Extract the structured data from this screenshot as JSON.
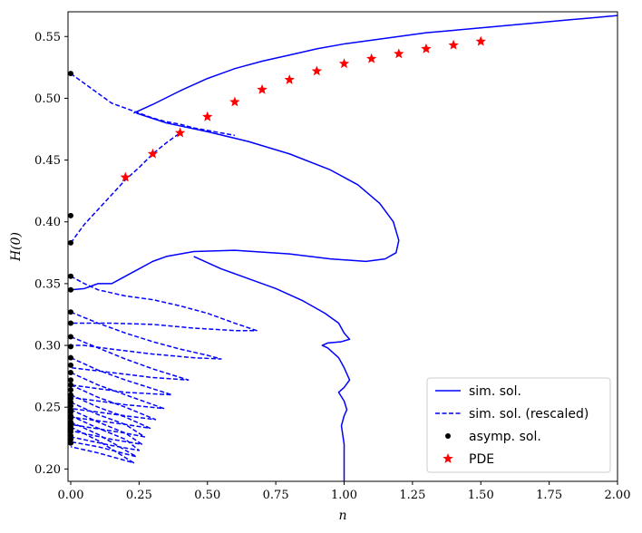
{
  "chart_data": {
    "type": "line",
    "xlabel": "n",
    "ylabel": "H(0)",
    "xlim": [
      -0.01,
      2.0
    ],
    "ylim": [
      0.19,
      0.57
    ],
    "x_ticks": [
      "0.00",
      "0.25",
      "0.50",
      "0.75",
      "1.00",
      "1.25",
      "1.50",
      "1.75",
      "2.00"
    ],
    "x_tick_values": [
      0.0,
      0.25,
      0.5,
      0.75,
      1.0,
      1.25,
      1.5,
      1.75,
      2.0
    ],
    "y_ticks": [
      "0.20",
      "0.25",
      "0.30",
      "0.35",
      "0.40",
      "0.45",
      "0.50",
      "0.55"
    ],
    "y_tick_values": [
      0.2,
      0.25,
      0.3,
      0.35,
      0.4,
      0.45,
      0.5,
      0.55
    ],
    "grid": false,
    "legend_position": "lower-right",
    "colors": {
      "solid": "#0000ff",
      "dashed": "#0000ff",
      "asymp": "#000000",
      "pde": "#ff0000"
    },
    "legend": [
      {
        "label": "sim. sol.",
        "style": "solid"
      },
      {
        "label": "sim. sol. (rescaled)",
        "style": "dashed"
      },
      {
        "label": "asymp. sol.",
        "style": "dot"
      },
      {
        "label": "PDE",
        "style": "star"
      }
    ],
    "series": [
      {
        "name": "sim. sol.",
        "style": "solid",
        "x": [
          0.23,
          0.3,
          0.4,
          0.5,
          0.6,
          0.7,
          0.8,
          0.9,
          1.0,
          1.1,
          1.2,
          1.3,
          1.4,
          1.5,
          1.6,
          1.7,
          1.8,
          1.9,
          2.0
        ],
        "y": [
          0.488,
          0.495,
          0.506,
          0.516,
          0.524,
          0.53,
          0.535,
          0.54,
          0.544,
          0.547,
          0.55,
          0.553,
          0.555,
          0.557,
          0.559,
          0.561,
          0.563,
          0.565,
          0.567
        ]
      },
      {
        "name": "sim. sol.",
        "style": "solid",
        "x": [
          0.24,
          0.35,
          0.5,
          0.65,
          0.8,
          0.95,
          1.05,
          1.13,
          1.18,
          1.2,
          1.19,
          1.15,
          1.08,
          0.95,
          0.8,
          0.6,
          0.45,
          0.35,
          0.3,
          0.25,
          0.2,
          0.15,
          0.1,
          0.05,
          0.0
        ],
        "y": [
          0.488,
          0.48,
          0.473,
          0.465,
          0.455,
          0.442,
          0.43,
          0.415,
          0.4,
          0.385,
          0.375,
          0.37,
          0.368,
          0.37,
          0.374,
          0.377,
          0.376,
          0.372,
          0.368,
          0.362,
          0.356,
          0.35,
          0.35,
          0.346,
          0.345
        ]
      },
      {
        "name": "sim. sol.",
        "style": "solid",
        "x": [
          0.45,
          0.55,
          0.65,
          0.75,
          0.85,
          0.93,
          0.98,
          1.0,
          1.02,
          0.99,
          0.94,
          0.92,
          0.94,
          0.98,
          1.0,
          1.02,
          1.0,
          0.98,
          1.0,
          1.01,
          1.0,
          0.99,
          1.0,
          1.0
        ],
        "y": [
          0.372,
          0.362,
          0.354,
          0.346,
          0.336,
          0.326,
          0.318,
          0.31,
          0.305,
          0.303,
          0.302,
          0.3,
          0.298,
          0.29,
          0.282,
          0.272,
          0.266,
          0.262,
          0.255,
          0.248,
          0.243,
          0.235,
          0.22,
          0.19
        ]
      },
      {
        "name": "sim. sol. (rescaled)",
        "style": "dashed",
        "x": [
          0.0,
          0.05,
          0.1,
          0.15,
          0.2,
          0.25,
          0.3,
          0.35,
          0.4,
          0.45,
          0.5,
          0.55,
          0.6
        ],
        "y": [
          0.52,
          0.512,
          0.504,
          0.496,
          0.492,
          0.488,
          0.484,
          0.481,
          0.479,
          0.476,
          0.474,
          0.472,
          0.47
        ]
      },
      {
        "name": "sim. sol. (rescaled)",
        "style": "dashed",
        "x": [
          0.0,
          0.05,
          0.1,
          0.15,
          0.2,
          0.25,
          0.3,
          0.35,
          0.4
        ],
        "y": [
          0.383,
          0.398,
          0.41,
          0.422,
          0.434,
          0.444,
          0.455,
          0.464,
          0.472
        ]
      },
      {
        "name": "sim. sol. (rescaled)",
        "style": "dashed",
        "x": [
          0.0,
          0.05,
          0.1,
          0.2,
          0.3,
          0.4,
          0.5,
          0.6,
          0.68,
          0.6,
          0.45,
          0.3,
          0.15,
          0.05,
          0.0
        ],
        "y": [
          0.356,
          0.35,
          0.345,
          0.34,
          0.337,
          0.332,
          0.326,
          0.318,
          0.312,
          0.312,
          0.314,
          0.317,
          0.318,
          0.318,
          0.318
        ]
      },
      {
        "name": "sim. sol. (rescaled)",
        "style": "dashed",
        "x": [
          0.0,
          0.1,
          0.2,
          0.3,
          0.4,
          0.5,
          0.55,
          0.45,
          0.3,
          0.15,
          0.05,
          0.0
        ],
        "y": [
          0.327,
          0.318,
          0.31,
          0.303,
          0.297,
          0.292,
          0.289,
          0.29,
          0.293,
          0.297,
          0.3,
          0.3
        ]
      },
      {
        "name": "sim. sol. (rescaled)",
        "style": "dashed",
        "x": [
          0.0,
          0.1,
          0.2,
          0.3,
          0.43,
          0.3,
          0.15,
          0.0
        ],
        "y": [
          0.307,
          0.298,
          0.289,
          0.281,
          0.272,
          0.274,
          0.278,
          0.282
        ]
      },
      {
        "name": "sim. sol. (rescaled)",
        "style": "dashed",
        "x": [
          0.0,
          0.1,
          0.2,
          0.37,
          0.2,
          0.0
        ],
        "y": [
          0.29,
          0.28,
          0.272,
          0.26,
          0.262,
          0.268
        ]
      },
      {
        "name": "sim. sol. (rescaled)",
        "style": "dashed",
        "x": [
          0.0,
          0.1,
          0.2,
          0.34,
          0.2,
          0.0
        ],
        "y": [
          0.278,
          0.268,
          0.26,
          0.249,
          0.252,
          0.258
        ]
      },
      {
        "name": "sim. sol. (rescaled)",
        "style": "dashed",
        "x": [
          0.0,
          0.1,
          0.2,
          0.31,
          0.2,
          0.0
        ],
        "y": [
          0.268,
          0.258,
          0.25,
          0.24,
          0.243,
          0.249
        ]
      },
      {
        "name": "sim. sol. (rescaled)",
        "style": "dashed",
        "x": [
          0.0,
          0.1,
          0.2,
          0.29,
          0.2,
          0.0
        ],
        "y": [
          0.26,
          0.25,
          0.242,
          0.233,
          0.236,
          0.242
        ]
      },
      {
        "name": "sim. sol. (rescaled)",
        "style": "dashed",
        "x": [
          0.0,
          0.1,
          0.2,
          0.27,
          0.2,
          0.0
        ],
        "y": [
          0.254,
          0.244,
          0.236,
          0.226,
          0.229,
          0.236
        ]
      },
      {
        "name": "sim. sol. (rescaled)",
        "style": "dashed",
        "x": [
          0.0,
          0.1,
          0.2,
          0.26,
          0.15,
          0.0
        ],
        "y": [
          0.248,
          0.238,
          0.229,
          0.22,
          0.224,
          0.231
        ]
      },
      {
        "name": "sim. sol. (rescaled)",
        "style": "dashed",
        "x": [
          0.0,
          0.1,
          0.2,
          0.25,
          0.15,
          0.0
        ],
        "y": [
          0.243,
          0.233,
          0.224,
          0.215,
          0.219,
          0.226
        ]
      },
      {
        "name": "sim. sol. (rescaled)",
        "style": "dashed",
        "x": [
          0.0,
          0.1,
          0.24,
          0.1,
          0.0
        ],
        "y": [
          0.238,
          0.228,
          0.21,
          0.218,
          0.222
        ]
      },
      {
        "name": "sim. sol. (rescaled)",
        "style": "dashed",
        "x": [
          0.0,
          0.1,
          0.23,
          0.1,
          0.0
        ],
        "y": [
          0.234,
          0.223,
          0.205,
          0.213,
          0.218
        ]
      }
    ],
    "asymp_points": {
      "x": [
        0,
        0,
        0,
        0,
        0,
        0,
        0,
        0,
        0,
        0,
        0,
        0,
        0,
        0,
        0,
        0,
        0,
        0,
        0,
        0,
        0,
        0,
        0,
        0,
        0,
        0,
        0,
        0,
        0,
        0,
        0
      ],
      "y": [
        0.52,
        0.405,
        0.383,
        0.356,
        0.345,
        0.327,
        0.318,
        0.307,
        0.299,
        0.29,
        0.284,
        0.278,
        0.272,
        0.268,
        0.264,
        0.26,
        0.257,
        0.254,
        0.251,
        0.248,
        0.246,
        0.243,
        0.241,
        0.238,
        0.236,
        0.234,
        0.232,
        0.23,
        0.227,
        0.224,
        0.221
      ]
    },
    "pde_points": {
      "x": [
        0.2,
        0.3,
        0.4,
        0.5,
        0.6,
        0.7,
        0.8,
        0.9,
        1.0,
        1.1,
        1.2,
        1.3,
        1.4,
        1.5
      ],
      "y": [
        0.436,
        0.455,
        0.472,
        0.485,
        0.497,
        0.507,
        0.515,
        0.522,
        0.528,
        0.532,
        0.536,
        0.54,
        0.543,
        0.546
      ]
    }
  }
}
